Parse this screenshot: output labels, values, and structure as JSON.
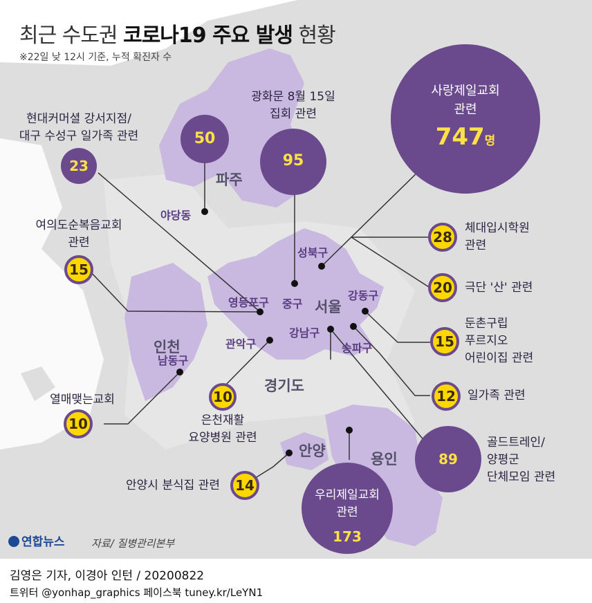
{
  "title": {
    "prefix": "최근 수도권",
    "bold": "코로나19 주요 발생",
    "suffix": "현황"
  },
  "subtitle": "※22일 낮 12시 기준, 누적 확진자 수",
  "regions": {
    "paju": "파주",
    "seoul": "서울",
    "incheon": "인천",
    "gyeonggi": "경기도",
    "anyang": "안양",
    "yongin": "용인"
  },
  "places": {
    "yadang": "야당동",
    "seongbuk": "성북구",
    "gangdong": "강동구",
    "yeongdeungpo": "영등포구",
    "junggu": "중구",
    "gangnam": "강남구",
    "songpa": "송파구",
    "gwanak": "관악구",
    "namdong": "남동구"
  },
  "clusters": [
    {
      "id": "sarang",
      "label_line1": "사랑제일교회",
      "label_line2": "관련",
      "count": "747",
      "unit": "명"
    },
    {
      "id": "gwanghwamun",
      "label_line1": "광화문 8월 15일",
      "label_line2": "집회 관련",
      "count": "95"
    },
    {
      "id": "paju",
      "count": "50"
    },
    {
      "id": "hyundai",
      "label_line1": "현대커머셜 강서지점/",
      "label_line2": "대구 수성구 일가족 관련",
      "count": "23"
    },
    {
      "id": "yeouido",
      "label_line1": "여의도순복음교회",
      "label_line2": "관련",
      "count": "15"
    },
    {
      "id": "yeolmae",
      "label_line1": "열매맺는교회",
      "count": "10"
    },
    {
      "id": "euncheon",
      "label_line1": "은천재활",
      "label_line2": "요양병원 관련",
      "count": "10"
    },
    {
      "id": "anyang",
      "label_line1": "안양시 분식집 관련",
      "count": "14"
    },
    {
      "id": "woori",
      "label_line1": "우리제일교회",
      "label_line2": "관련",
      "count": "173"
    },
    {
      "id": "gold",
      "label_line1": "골드트레인/",
      "label_line2": "양평군",
      "label_line3": "단체모임 관련",
      "count": "89"
    },
    {
      "id": "chedae",
      "label_line1": "체대입시학원",
      "label_line2": "관련",
      "count": "28"
    },
    {
      "id": "geukdan",
      "label_line1": "극단 '산' 관련",
      "count": "20"
    },
    {
      "id": "dunchon",
      "label_line1": "둔촌구립",
      "label_line2": "푸르지오",
      "label_line3": "어린이집 관련",
      "count": "15"
    },
    {
      "id": "ilgajok",
      "label_line1": "일가족 관련",
      "count": "12"
    }
  ],
  "source": "자료/ 질병관리본부",
  "logo": "연합뉴스",
  "footer": {
    "line1": "김영은 기자, 이경아 인턴 / 20200822",
    "line2": "트위터 @yonhap_graphics  페이스북 tuney.kr/LeYN1"
  },
  "colors": {
    "bubble": "#6a4a8c",
    "light_region": "#c9b8e0",
    "map_gray": "#d9d9d9",
    "yellow": "#ffd700"
  }
}
